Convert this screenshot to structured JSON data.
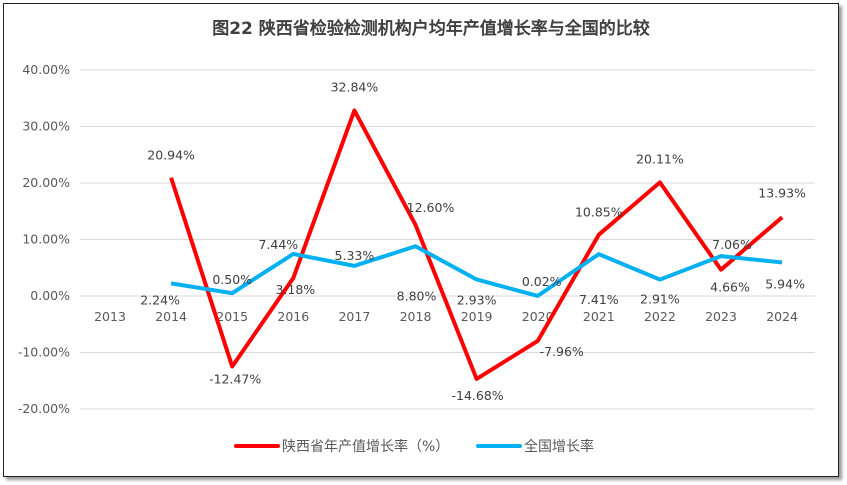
{
  "chart_data": {
    "type": "line",
    "title": "图22  陕西省检验检测机构户均年产值增长率与全国的比较",
    "categories": [
      "2013",
      "2014",
      "2015",
      "2016",
      "2017",
      "2018",
      "2019",
      "2020",
      "2021",
      "2022",
      "2023",
      "2024"
    ],
    "ylim": [
      -20,
      40
    ],
    "yticks": [
      40,
      30,
      20,
      10,
      0,
      -10,
      -20
    ],
    "ytick_labels": [
      "40.00%",
      "30.00%",
      "20.00%",
      "10.00%",
      "0.00%",
      "-10.00%",
      "-20.00%"
    ],
    "grid": true,
    "legend": "bottom",
    "series": [
      {
        "name": "陕西省年产值增长率（%）",
        "color": "#ff0000",
        "values": [
          null,
          20.94,
          -12.47,
          3.18,
          32.84,
          12.6,
          -14.68,
          -7.96,
          10.85,
          20.11,
          4.66,
          13.93
        ],
        "labels": [
          null,
          "20.94%",
          "-12.47%",
          "3.18%",
          "32.84%",
          "12.60%",
          "-14.68%",
          "-7.96%",
          "10.85%",
          "20.11%",
          "4.66%",
          "13.93%"
        ]
      },
      {
        "name": "全国增长率",
        "color": "#00b0f0",
        "values": [
          null,
          2.24,
          0.5,
          7.44,
          5.33,
          8.8,
          2.93,
          0.02,
          7.41,
          2.91,
          7.06,
          5.94
        ],
        "labels": [
          null,
          "2.24%",
          "0.50%",
          "7.44%",
          "5.33%",
          "8.80%",
          "2.93%",
          "0.02%",
          "7.41%",
          "2.91%",
          "7.06%",
          "5.94%"
        ]
      }
    ]
  }
}
